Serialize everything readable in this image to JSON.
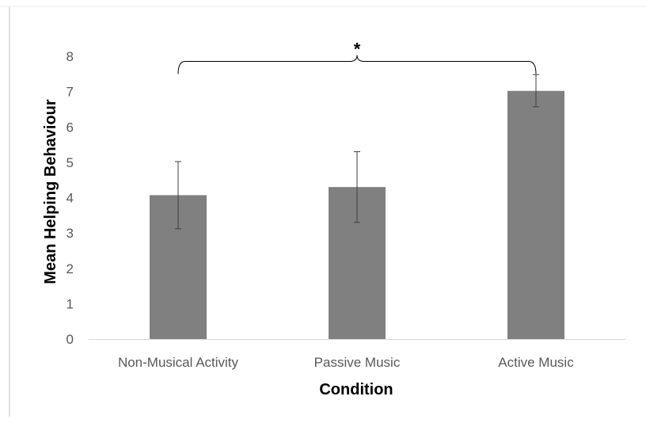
{
  "chart_data": {
    "type": "bar",
    "title": "",
    "xlabel": "Condition",
    "ylabel": "Mean Helping Behaviour",
    "categories": [
      "Non-Musical Activity",
      "Passive Music",
      "Active Music"
    ],
    "values": [
      4.07,
      4.3,
      7.02
    ],
    "error_bars": [
      [
        3.12,
        5.02
      ],
      [
        3.3,
        5.3
      ],
      [
        6.57,
        7.48
      ]
    ],
    "ylim": [
      0,
      8
    ],
    "yticks": [
      "0",
      "1",
      "2",
      "3",
      "4",
      "5",
      "6",
      "7",
      "8"
    ],
    "grid": false,
    "legend": "none",
    "significance": {
      "label": "*",
      "from_category": "Non-Musical Activity",
      "to_category": "Active Music",
      "level": 7.9
    },
    "colors": {
      "bar": "#808080",
      "error_bar": "#404040",
      "axis": "#d9d9d9",
      "tick_text": "#595959",
      "title_text": "#000000"
    }
  }
}
